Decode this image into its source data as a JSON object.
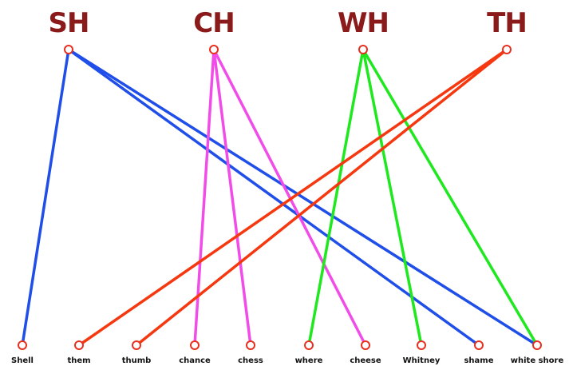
{
  "colors": {
    "digraph_text": "#8b1a1a",
    "node_ring": "#e83020",
    "word_text": "#111111",
    "background": "#ffffff"
  },
  "digraphs": [
    {
      "key": "sh",
      "label": "SH",
      "color": "#1f4ee8"
    },
    {
      "key": "ch",
      "label": "CH",
      "color": "#f24ce8"
    },
    {
      "key": "wh",
      "label": "WH",
      "color": "#1ee81e"
    },
    {
      "key": "th",
      "label": "TH",
      "color": "#f5380f"
    }
  ],
  "words": [
    {
      "key": "shell",
      "label": "Shell"
    },
    {
      "key": "them",
      "label": "them"
    },
    {
      "key": "thumb",
      "label": "thumb"
    },
    {
      "key": "chance",
      "label": "chance"
    },
    {
      "key": "chess",
      "label": "chess"
    },
    {
      "key": "where",
      "label": "where"
    },
    {
      "key": "cheese",
      "label": "cheese"
    },
    {
      "key": "whitney",
      "label": "Whitney"
    },
    {
      "key": "shame",
      "label": "shame"
    },
    {
      "key": "white-shore",
      "label": "white shore"
    }
  ],
  "connections": [
    {
      "from": "sh",
      "to": "shell"
    },
    {
      "from": "sh",
      "to": "shame"
    },
    {
      "from": "sh",
      "to": "white-shore"
    },
    {
      "from": "ch",
      "to": "chance"
    },
    {
      "from": "ch",
      "to": "chess"
    },
    {
      "from": "ch",
      "to": "cheese"
    },
    {
      "from": "wh",
      "to": "where"
    },
    {
      "from": "wh",
      "to": "whitney"
    },
    {
      "from": "wh",
      "to": "white-shore"
    },
    {
      "from": "th",
      "to": "them"
    },
    {
      "from": "th",
      "to": "thumb"
    }
  ]
}
